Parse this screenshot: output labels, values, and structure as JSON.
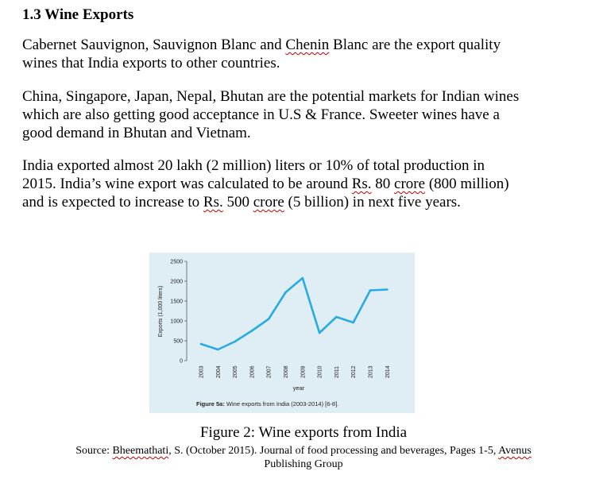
{
  "section": {
    "heading": "1.3 Wine Exports"
  },
  "paragraphs": {
    "p1": {
      "l1a": "Cabernet Sauvignon, Sauvignon Blanc and ",
      "l1b": "Chenin",
      "l1c": " Blanc are the export quality",
      "l2": "wines that India exports to other countries."
    },
    "p2": {
      "l1": "China, Singapore, Japan, Nepal, Bhutan are the potential markets for Indian wines",
      "l2": "which are also getting good acceptance in U.S & France. Sweeter wines have a",
      "l3": "good demand in Bhutan and Vietnam."
    },
    "p3": {
      "l1": "India exported almost 20 lakh (2 million) liters or 10% of total production in",
      "l2a": "2015. India’s wine export was calculated to be around ",
      "l2b": "Rs.",
      "l2c": " 80 ",
      "l2d": "crore",
      "l2e": " (800 million)",
      "l3a": "and is expected to increase to ",
      "l3b": "Rs.",
      "l3c": " 500 ",
      "l3d": "crore",
      "l3e": " (5 billion) in next five years."
    }
  },
  "figure": {
    "caption_label": "Figure 5a:",
    "caption_text": " Wine exports from India (2003-2014) [6-8].",
    "title": "Figure 2: Wine exports from India",
    "source": {
      "l1a": "Source: ",
      "l1b": "Bheemathati",
      "l1c": ", S. (October 2015). Journal of food processing and beverages, Pages 1-5, ",
      "l1d": "Avenus",
      "l2": "Publishing Group"
    }
  },
  "colors": {
    "line": "#29abe2",
    "panel": "#dfeef4",
    "spellcheck": "#c00000"
  },
  "chart_data": {
    "type": "line",
    "xlabel": "year",
    "ylabel": "Exports (1,000 liters)",
    "x": [
      "2003",
      "2004",
      "2005",
      "2006",
      "2007",
      "2008",
      "2009",
      "2010",
      "2011",
      "2012",
      "2013",
      "2014"
    ],
    "series": [
      {
        "values": [
          420,
          280,
          480,
          750,
          1050,
          1720,
          2080,
          700,
          1100,
          960,
          1770,
          1790
        ]
      }
    ],
    "yticks": [
      "0",
      "500",
      "1000",
      "1500",
      "2000",
      "2500"
    ],
    "ylim": [
      0,
      2500
    ],
    "grid": false
  }
}
